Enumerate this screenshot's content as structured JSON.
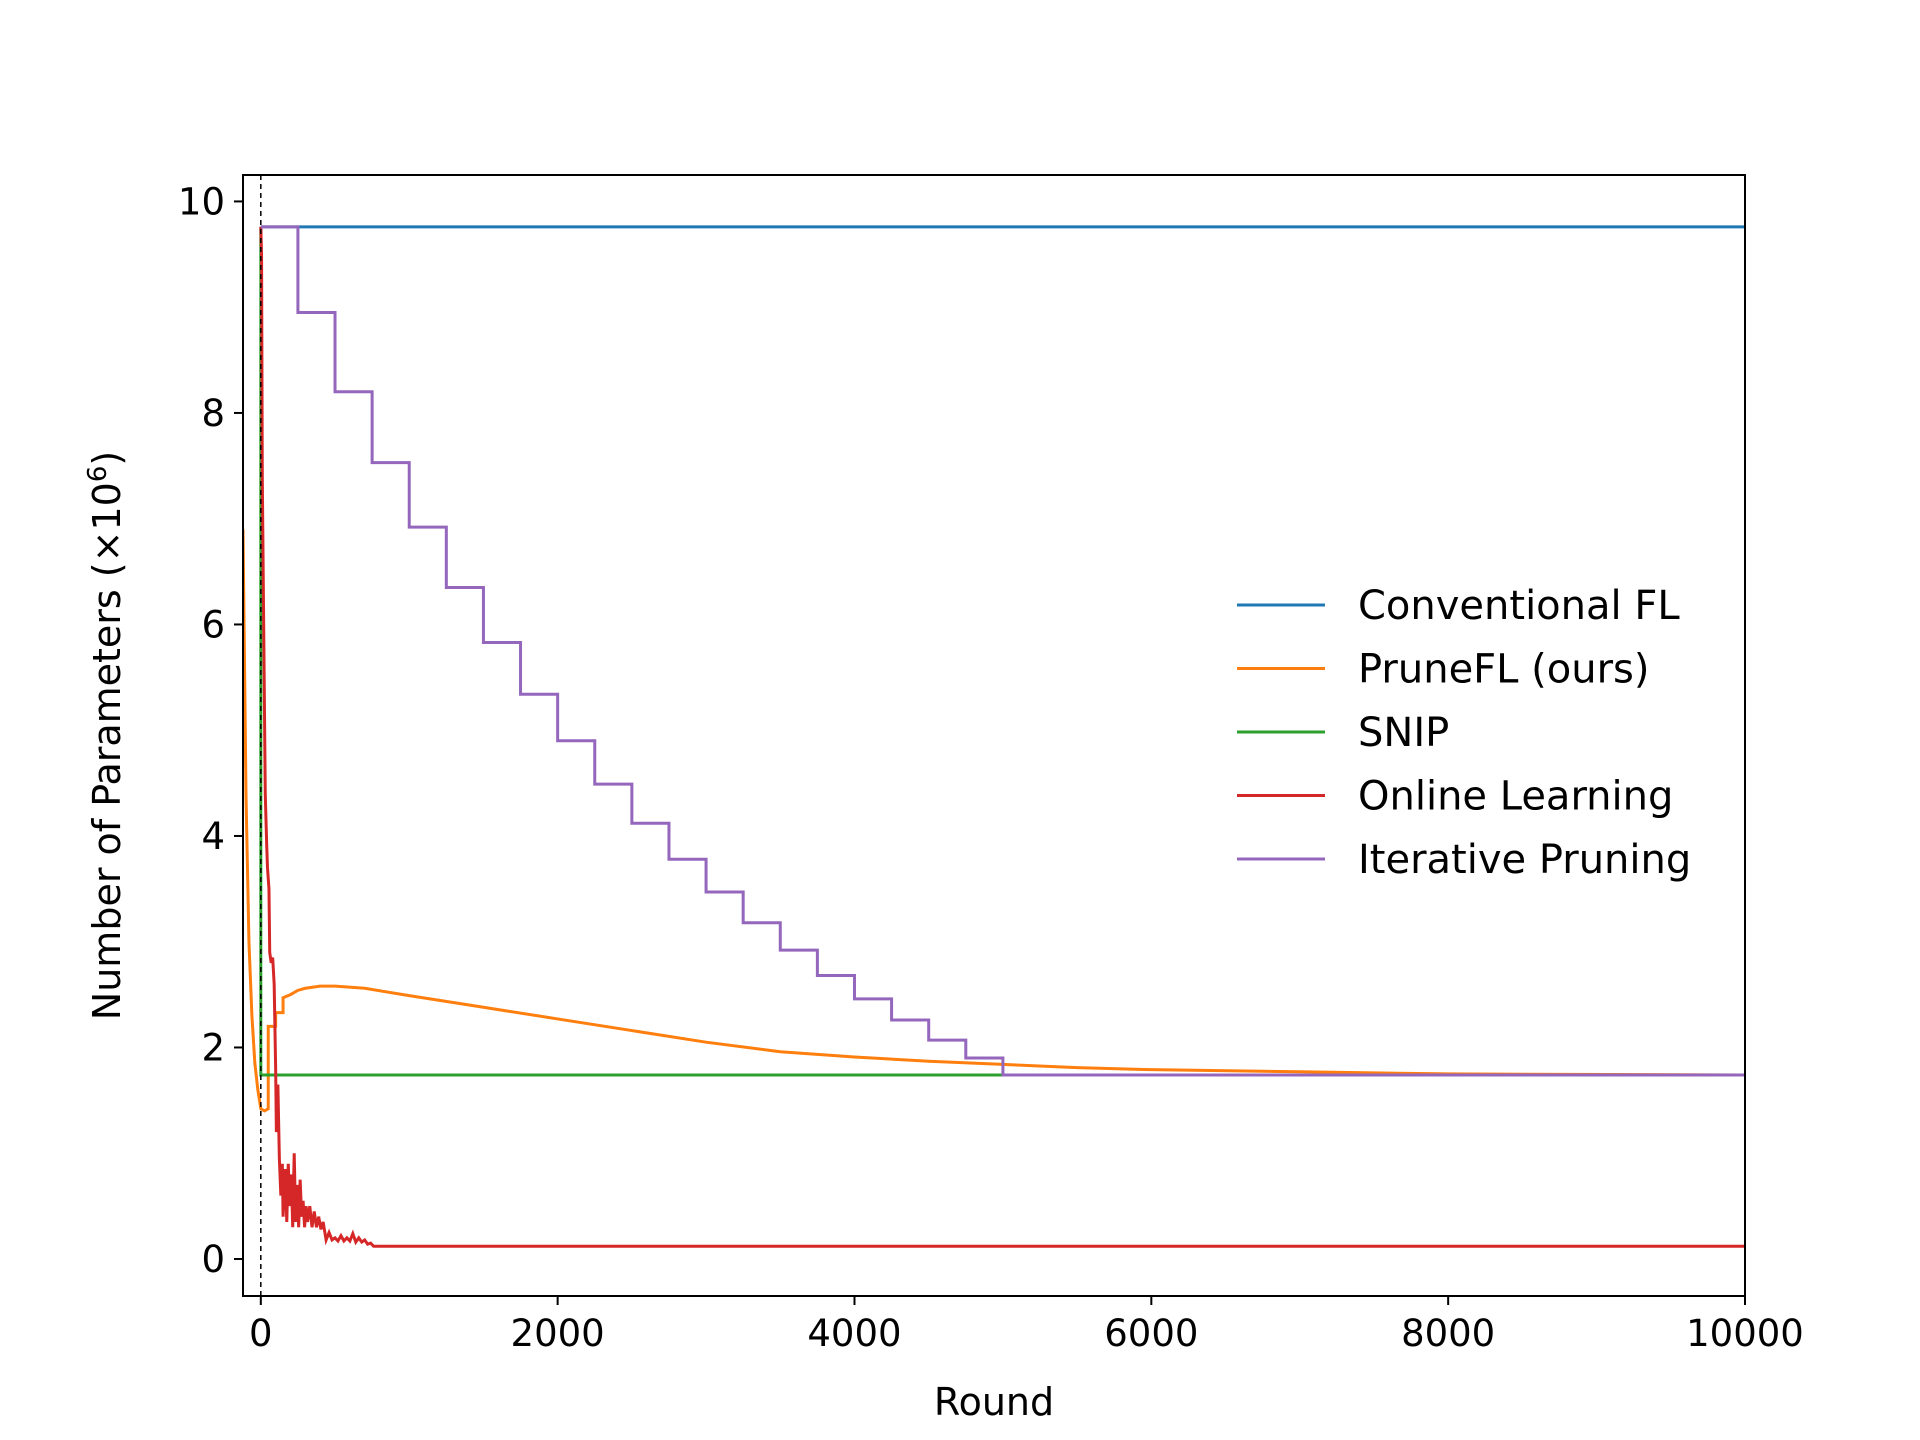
{
  "chart_data": {
    "type": "line",
    "title": "",
    "xlabel": "Round",
    "ylabel": "Number of Parameters (×10",
    "ylabel_exponent": "6",
    "ylabel_suffix": ")",
    "xlim": [
      -120,
      10000
    ],
    "ylim": [
      -0.35,
      10.25
    ],
    "x_ticks": [
      0,
      2000,
      4000,
      6000,
      8000,
      10000
    ],
    "y_ticks": [
      0,
      2,
      4,
      6,
      8,
      10
    ],
    "vline_x": 0,
    "legend_position": "center-right",
    "series": [
      {
        "name": "Conventional FL",
        "color": "#1f77b4",
        "style": "line",
        "x": [
          0,
          10000
        ],
        "y": [
          9.76,
          9.76
        ]
      },
      {
        "name": "PruneFL (ours)",
        "color": "#ff7f0e",
        "style": "line",
        "x": [
          -120,
          -100,
          -80,
          -60,
          -40,
          -20,
          0,
          25,
          50,
          50,
          80,
          100,
          100,
          150,
          150,
          200,
          250,
          300,
          400,
          500,
          700,
          1000,
          1500,
          2000,
          2500,
          3000,
          3500,
          4000,
          4500,
          5000,
          5500,
          6000,
          7000,
          8000,
          10000
        ],
        "y": [
          6.9,
          4.4,
          3.0,
          2.3,
          1.85,
          1.6,
          1.42,
          1.4,
          1.42,
          2.2,
          2.2,
          2.2,
          2.33,
          2.33,
          2.47,
          2.5,
          2.54,
          2.56,
          2.58,
          2.58,
          2.56,
          2.49,
          2.38,
          2.27,
          2.16,
          2.05,
          1.96,
          1.91,
          1.87,
          1.84,
          1.81,
          1.79,
          1.77,
          1.75,
          1.74
        ]
      },
      {
        "name": "SNIP",
        "color": "#2ca02c",
        "style": "line",
        "x": [
          0,
          0,
          10000
        ],
        "y": [
          9.76,
          1.74,
          1.74
        ]
      },
      {
        "name": "Online Learning",
        "color": "#d62728",
        "style": "line",
        "x": [
          0,
          5,
          10,
          20,
          30,
          40,
          45,
          55,
          60,
          70,
          80,
          90,
          100,
          105,
          115,
          125,
          135,
          145,
          150,
          165,
          175,
          185,
          195,
          205,
          215,
          225,
          235,
          245,
          255,
          265,
          275,
          285,
          295,
          305,
          315,
          330,
          345,
          360,
          375,
          390,
          405,
          420,
          440,
          460,
          480,
          500,
          520,
          540,
          560,
          580,
          600,
          620,
          640,
          660,
          680,
          700,
          720,
          740,
          760,
          800,
          900,
          1000,
          2000,
          3000,
          4000,
          5000,
          6000,
          7000,
          8000,
          9000,
          10000
        ],
        "y": [
          9.76,
          9.5,
          7.4,
          5.9,
          4.4,
          3.9,
          3.7,
          3.5,
          2.9,
          2.8,
          2.85,
          2.6,
          1.8,
          1.2,
          1.65,
          0.95,
          0.6,
          0.9,
          0.4,
          0.85,
          0.35,
          0.9,
          0.5,
          0.8,
          0.3,
          1.0,
          0.35,
          0.7,
          0.3,
          0.75,
          0.4,
          0.55,
          0.3,
          0.5,
          0.35,
          0.5,
          0.3,
          0.45,
          0.3,
          0.4,
          0.28,
          0.35,
          0.18,
          0.25,
          0.18,
          0.2,
          0.17,
          0.22,
          0.17,
          0.2,
          0.17,
          0.24,
          0.16,
          0.2,
          0.16,
          0.18,
          0.14,
          0.15,
          0.12,
          0.12,
          0.12,
          0.12,
          0.12,
          0.12,
          0.12,
          0.12,
          0.12,
          0.12,
          0.12,
          0.12,
          0.12
        ]
      },
      {
        "name": "Iterative Pruning",
        "color": "#9467bd",
        "style": "step",
        "x": [
          0,
          250,
          500,
          750,
          1000,
          1250,
          1500,
          1750,
          2000,
          2250,
          2500,
          2750,
          3000,
          3250,
          3500,
          3750,
          4000,
          4250,
          4500,
          4750,
          5000,
          10000
        ],
        "y": [
          9.76,
          8.95,
          8.2,
          7.53,
          6.92,
          6.35,
          5.83,
          5.34,
          4.9,
          4.49,
          4.12,
          3.78,
          3.47,
          3.18,
          2.92,
          2.68,
          2.46,
          2.26,
          2.07,
          1.9,
          1.74,
          1.74
        ]
      }
    ]
  }
}
